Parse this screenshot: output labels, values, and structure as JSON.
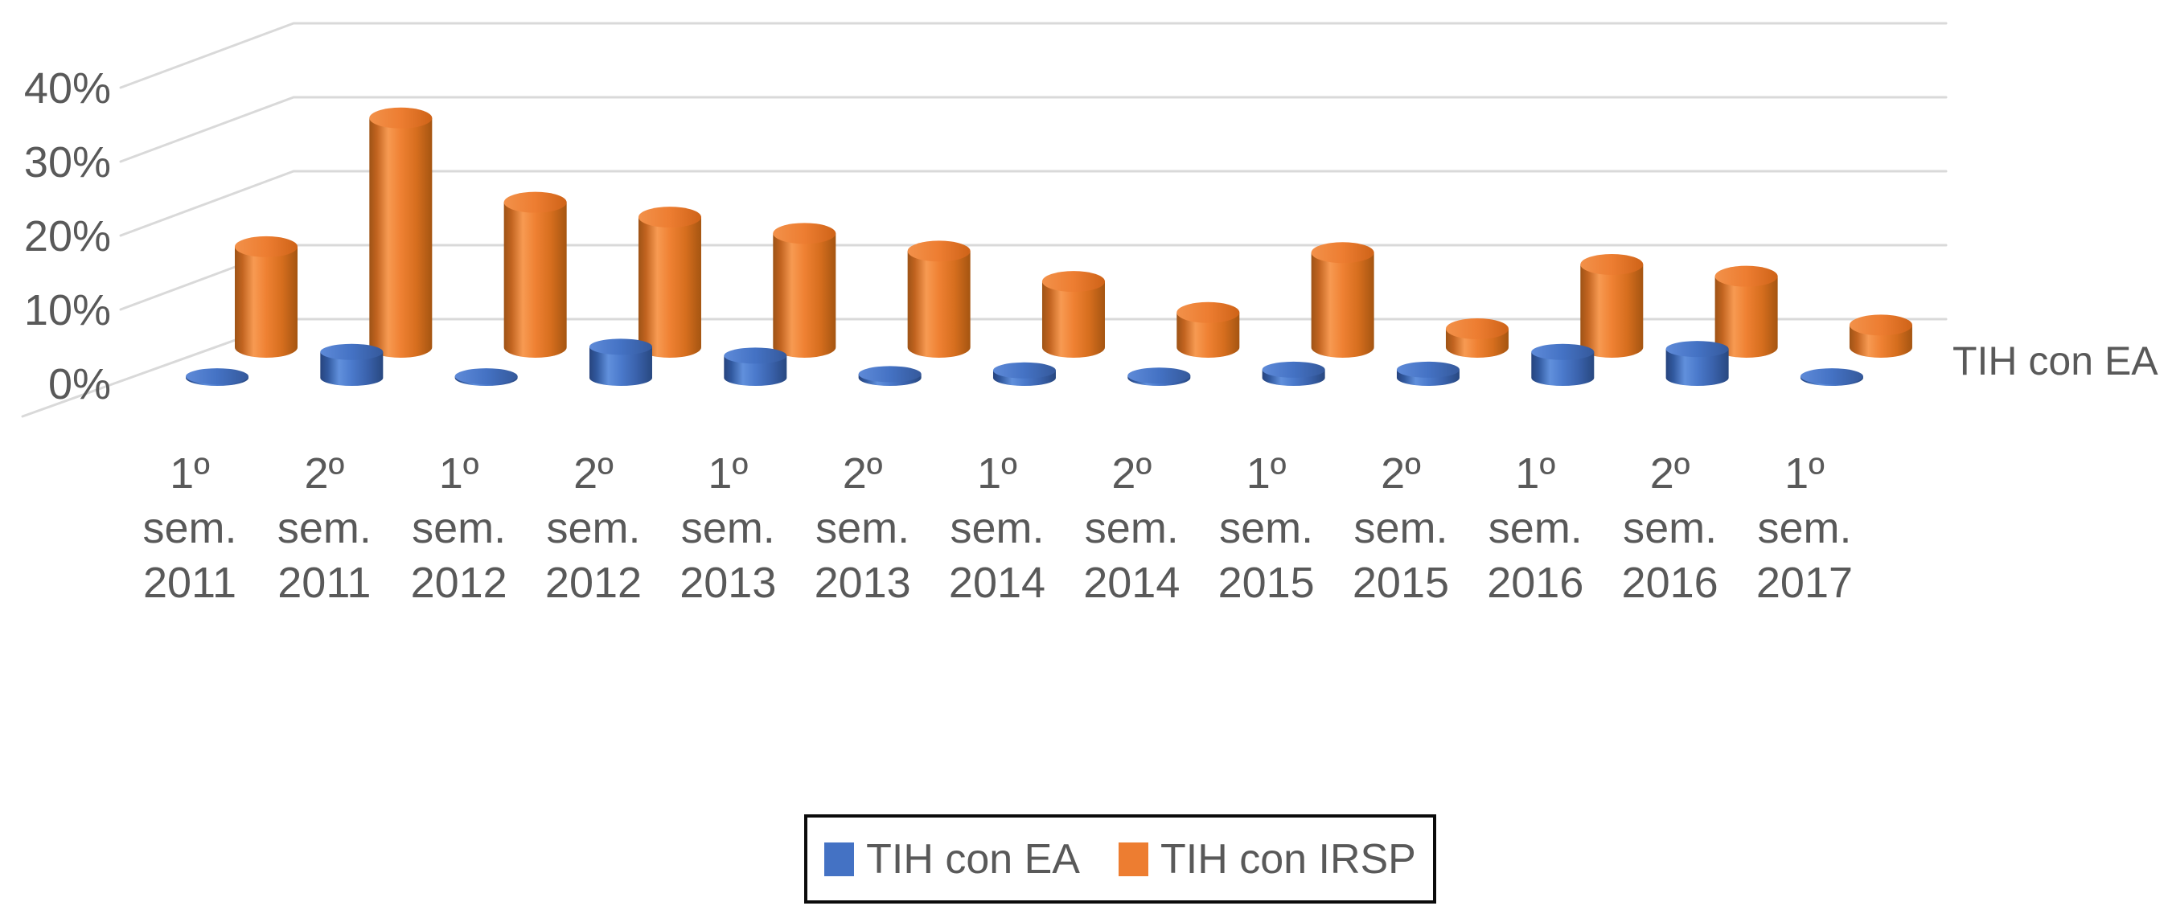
{
  "chart_data": {
    "type": "bar",
    "subtype": "3d-cylinder",
    "title": "",
    "xlabel": "",
    "ylabel": "",
    "ylim": [
      0,
      40
    ],
    "yticks_top_to_bottom": [
      "40%",
      "30%",
      "20%",
      "10%",
      "0%"
    ],
    "grid": true,
    "legend_position": "bottom",
    "depth_axis_label": "TIH con EA",
    "categories": [
      "1º sem. 2011",
      "2º sem. 2011",
      "1º sem. 2012",
      "2º sem. 2012",
      "1º sem. 2013",
      "2º sem. 2013",
      "1º sem. 2014",
      "2º sem. 2014",
      "1º sem. 2015",
      "2º sem. 2015",
      "1º sem. 2016",
      "2º sem. 2016",
      "1º sem. 2017"
    ],
    "series": [
      {
        "name": "TIH con EA",
        "color": "#4472C4",
        "values_pct": [
          0.2,
          3.5,
          0.2,
          4.2,
          3.0,
          0.5,
          1.0,
          0.3,
          1.1,
          1.1,
          3.5,
          3.9,
          0.2
        ]
      },
      {
        "name": "TIH con IRSP",
        "color": "#ED7D31",
        "values_pct": [
          13.6,
          31.0,
          19.6,
          17.6,
          15.4,
          13.0,
          8.9,
          4.7,
          12.8,
          2.5,
          11.2,
          9.6,
          3.0
        ]
      }
    ]
  },
  "legend": {
    "items": [
      {
        "label": "TIH con EA",
        "color": "#4472C4"
      },
      {
        "label": "TIH con IRSP",
        "color": "#ED7D31"
      }
    ]
  },
  "colors": {
    "text": "#595959",
    "gridline": "#D9D9D9",
    "legend_border": "#0B0B0B",
    "background": "#FFFFFF"
  }
}
